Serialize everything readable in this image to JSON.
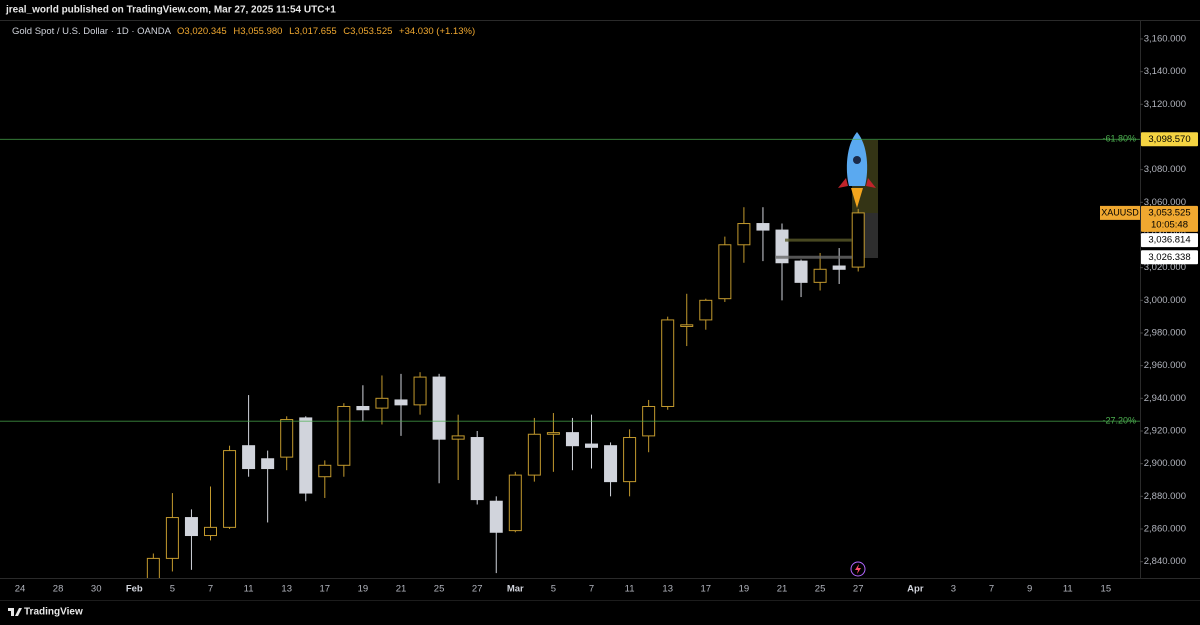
{
  "header": {
    "published": "jreal_world published on TradingView.com, Mar 27, 2025 11:54 UTC+1"
  },
  "footer": {
    "brand": "TradingView"
  },
  "chart_data": {
    "type": "candlestick",
    "title": "Gold Spot / U.S. Dollar · 1D · OANDA",
    "ohlc_legend": [
      "O3,020.345",
      "H3,055.980",
      "L3,017.655",
      "C3,053.525",
      "+34.030 (+1.13%)"
    ],
    "categories": [
      "24",
      null,
      "28",
      null,
      "30",
      null,
      "Feb",
      null,
      "5",
      null,
      "7",
      null,
      "11",
      null,
      "13",
      null,
      "17",
      null,
      "19",
      null,
      "21",
      null,
      "25",
      null,
      "27",
      null,
      "Mar",
      null,
      "5",
      null,
      "7",
      null,
      "11",
      null,
      "13",
      null,
      "17",
      null,
      "19",
      null,
      "21",
      null,
      "25",
      null,
      "27",
      null,
      null,
      "Apr",
      null,
      "3",
      null,
      "7",
      null,
      "9",
      null,
      "11",
      null,
      "15"
    ],
    "open": [
      null,
      null,
      null,
      null,
      null,
      null,
      null,
      2815,
      2842,
      2867,
      2856,
      2861,
      2911,
      2903,
      2904,
      2928,
      2892,
      2899,
      2935,
      2934,
      2939,
      2936,
      2953,
      2915,
      2916,
      2877,
      2859,
      2893,
      2918,
      2919,
      2912,
      2911,
      2889,
      2917,
      2935,
      2984,
      2988,
      3001,
      3034,
      3047,
      3043,
      3024,
      3011,
      3021,
      3020.345,
      null,
      null,
      null,
      null,
      null,
      null,
      null,
      null,
      null,
      null,
      null,
      null,
      null
    ],
    "high": [
      null,
      null,
      null,
      null,
      null,
      null,
      null,
      2845,
      2882,
      2872,
      2886,
      2911,
      2942,
      2908,
      2929,
      2929,
      2902,
      2937,
      2948,
      2954,
      2955,
      2956,
      2955,
      2930,
      2920,
      2880,
      2895,
      2928,
      2931,
      2928,
      2930,
      2913,
      2921,
      2939,
      2990,
      3004,
      3001,
      3039,
      3057,
      3057,
      3047,
      3025,
      3029,
      3032,
      3055.98,
      null,
      null,
      null,
      null,
      null,
      null,
      null,
      null,
      null,
      null,
      null,
      null,
      null
    ],
    "low": [
      null,
      null,
      null,
      null,
      null,
      null,
      null,
      2812,
      2834,
      2835,
      2853,
      2860,
      2892,
      2864,
      2896,
      2877,
      2879,
      2892,
      2926,
      2924,
      2917,
      2930,
      2888,
      2890,
      2875,
      2833,
      2858,
      2889,
      2895,
      2896,
      2897,
      2880,
      2880,
      2907,
      2933,
      2972,
      2982,
      2999,
      3023,
      3024,
      3000,
      3002,
      3006,
      3010,
      3017.655,
      null,
      null,
      null,
      null,
      null,
      null,
      null,
      null,
      null,
      null,
      null,
      null,
      null
    ],
    "close": [
      null,
      null,
      null,
      null,
      null,
      null,
      null,
      2842,
      2867,
      2856,
      2861,
      2908,
      2897,
      2897,
      2927,
      2882,
      2899,
      2935,
      2933,
      2940,
      2936,
      2953,
      2915,
      2917,
      2878,
      2858,
      2893,
      2918,
      2919,
      2911,
      2910,
      2889,
      2916,
      2935,
      2988,
      2985,
      3000,
      3034,
      3047,
      3043,
      3023,
      3011,
      3019,
      3019,
      3053.525,
      null,
      null,
      null,
      null,
      null,
      null,
      null,
      null,
      null,
      null,
      null,
      null,
      null
    ],
    "up_color": "#c39a2e",
    "down_color": "#d1d4dc",
    "ylim": [
      2830,
      3171
    ],
    "yticks": [
      {
        "value": 2840,
        "label": "2,840.000"
      },
      {
        "value": 2860,
        "label": "2,860.000"
      },
      {
        "value": 2880,
        "label": "2,880.000"
      },
      {
        "value": 2900,
        "label": "2,900.000"
      },
      {
        "value": 2920,
        "label": "2,920.000"
      },
      {
        "value": 2940,
        "label": "2,940.000"
      },
      {
        "value": 2960,
        "label": "2,960.000"
      },
      {
        "value": 2980,
        "label": "2,980.000"
      },
      {
        "value": 3000,
        "label": "3,000.000"
      },
      {
        "value": 3020,
        "label": "3,020.000"
      },
      {
        "value": 3040,
        "label": "3,040.000"
      },
      {
        "value": 3060,
        "label": "3,060.000"
      },
      {
        "value": 3080,
        "label": "3,080.000"
      },
      {
        "value": 3100,
        "label": "3,100.000"
      },
      {
        "value": 3120,
        "label": "3,120.000"
      },
      {
        "value": 3140,
        "label": "3,140.000"
      },
      {
        "value": 3160,
        "label": "3,160.000"
      }
    ],
    "grid": false,
    "levels": [
      {
        "value": 3098.57,
        "label": "-61.80%"
      },
      {
        "value": 2926,
        "label": "-27.20%"
      }
    ],
    "level_color": "#4caf50",
    "price_tags": [
      {
        "value": 3098.57,
        "label": "3,098.570",
        "color": "#f5d442"
      },
      {
        "value": 3053.525,
        "label": "3,053.525",
        "symbol": "XAUUSD",
        "countdown": "10:05:48",
        "color": "#f0a830"
      },
      {
        "value": 3036.814,
        "label": "3,036.814",
        "color": "#ffffff"
      },
      {
        "value": 3026.338,
        "label": "3,026.338",
        "color": "#ffffff"
      }
    ]
  }
}
